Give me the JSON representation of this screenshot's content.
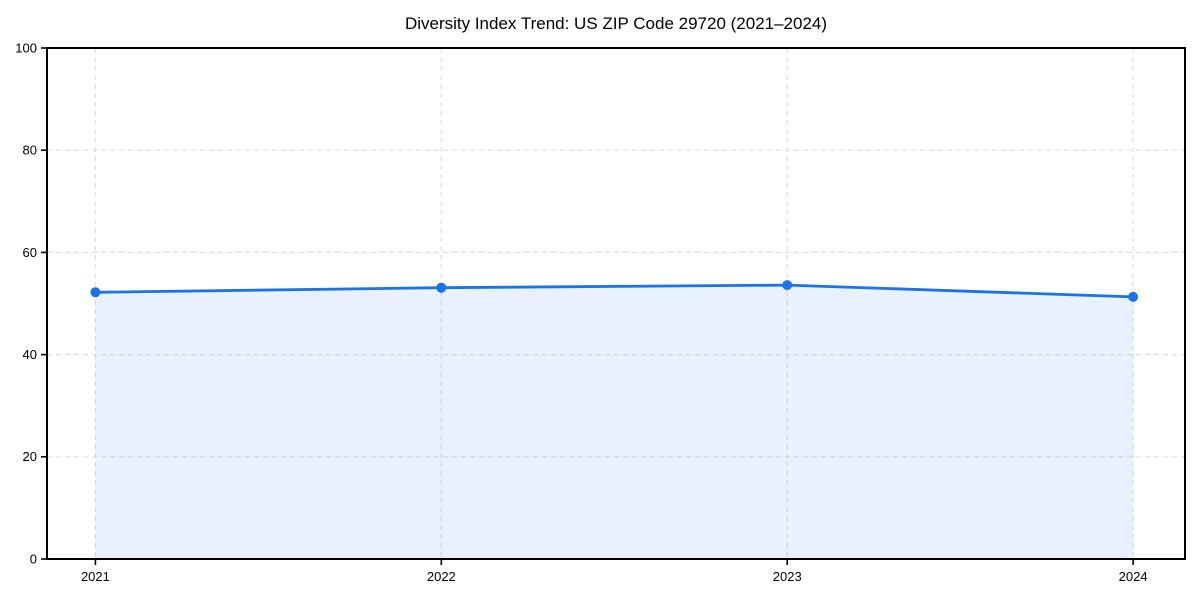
{
  "chart_data": {
    "type": "area",
    "title": "Diversity Index Trend: US ZIP Code 29720 (2021–2024)",
    "x": [
      2021,
      2022,
      2023,
      2024
    ],
    "values": [
      52.2,
      53.1,
      53.6,
      51.3
    ],
    "xtick_labels": [
      "2021",
      "2022",
      "2023",
      "2024"
    ],
    "ytick_labels": [
      "0",
      "20",
      "40",
      "60",
      "80",
      "100"
    ],
    "xticks": [
      2021,
      2022,
      2023,
      2024
    ],
    "yticks": [
      0,
      20,
      40,
      60,
      80,
      100
    ],
    "xlim": [
      2020.86,
      2024.15
    ],
    "ylim": [
      0,
      100
    ],
    "xlabel": "",
    "ylabel": "",
    "grid": true,
    "legend": false,
    "colors": {
      "line": "#1a73e8",
      "marker": "#1a73e8",
      "fill": "#1a73e8",
      "fill_opacity": 0.1,
      "grid": "#dcdcdc",
      "spine": "#000000",
      "text": "#000000",
      "background": "#ffffff"
    }
  }
}
